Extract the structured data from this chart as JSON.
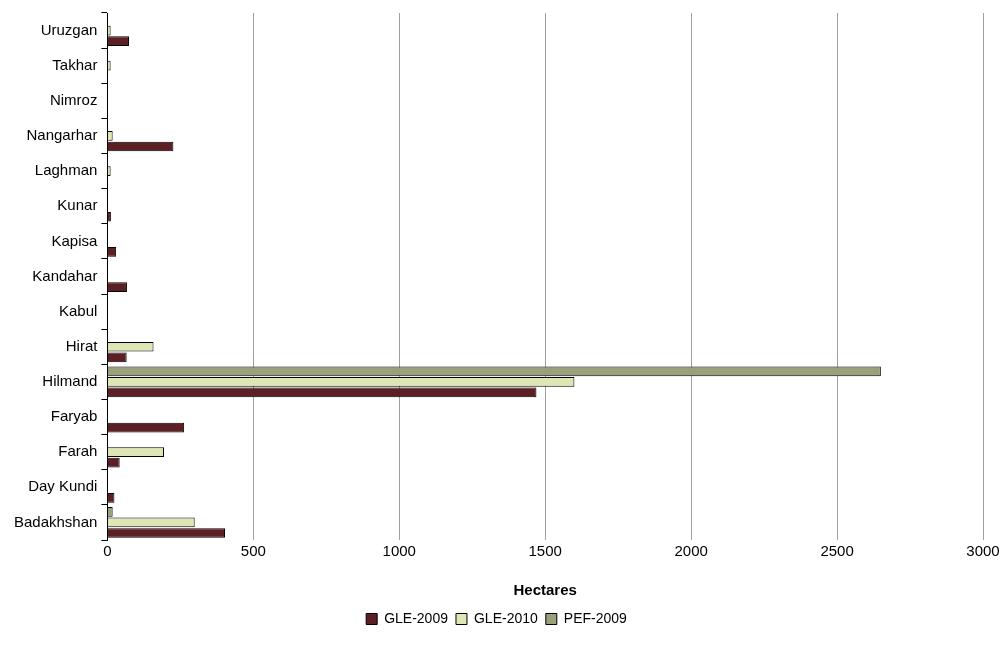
{
  "chart_data": {
    "type": "bar",
    "orientation": "horizontal",
    "xlabel": "Hectares",
    "categories": [
      "Uruzgan",
      "Takhar",
      "Nimroz",
      "Nangarhar",
      "Laghman",
      "Kunar",
      "Kapisa",
      "Kandahar",
      "Kabul",
      "Hirat",
      "Hilmand",
      "Faryab",
      "Farah",
      "Day Kundi",
      "Badakhshan"
    ],
    "series": [
      {
        "name": "GLE-2009",
        "color": "#5c1f24",
        "values": [
          74,
          null,
          null,
          226,
          null,
          12,
          30,
          67,
          null,
          66,
          1470,
          263,
          42,
          24,
          403
        ]
      },
      {
        "name": "GLE-2010",
        "color": "#e0e6b3",
        "values": [
          11,
          11,
          null,
          18,
          11,
          null,
          null,
          null,
          null,
          158,
          1600,
          null,
          194,
          null,
          299
        ]
      },
      {
        "name": "PEF-2009",
        "color": "#9a9f7c",
        "values": [
          null,
          null,
          null,
          null,
          null,
          null,
          null,
          null,
          null,
          null,
          2650,
          null,
          null,
          null,
          18
        ]
      }
    ],
    "xlim": [
      0,
      3000
    ],
    "xticks": [
      0,
      500,
      1000,
      1500,
      2000,
      2500,
      3000
    ],
    "grid": "x",
    "legend": "bottom"
  }
}
